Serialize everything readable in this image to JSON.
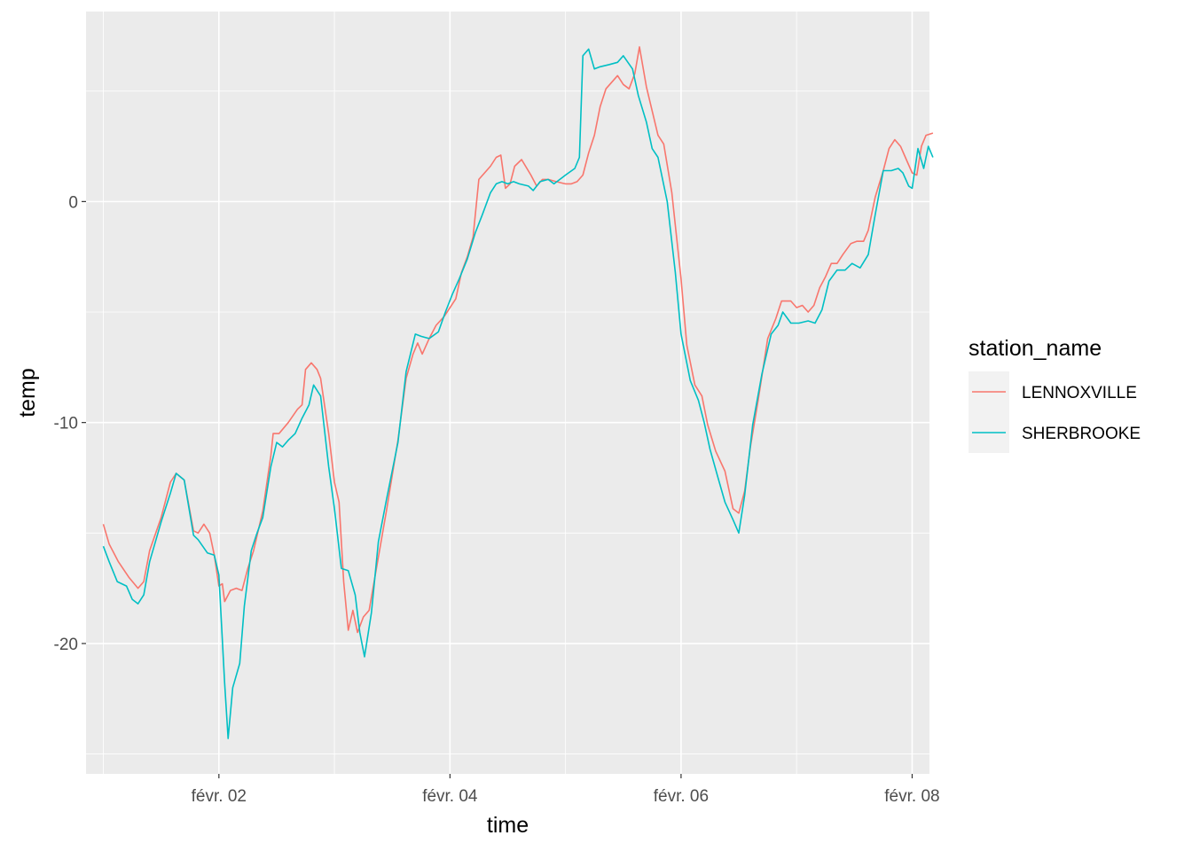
{
  "chart_data": {
    "type": "line",
    "xlabel": "time",
    "ylabel": "temp",
    "x_unit": "days (février)",
    "xlim": [
      0.85,
      8.15
    ],
    "ylim": [
      -25.9,
      8.6
    ],
    "x_ticks": [
      {
        "value": 2,
        "label": "févr. 02"
      },
      {
        "value": 4,
        "label": "févr. 04"
      },
      {
        "value": 6,
        "label": "févr. 06"
      },
      {
        "value": 8,
        "label": "févr. 08"
      }
    ],
    "x_minor": [
      1,
      3,
      5,
      7
    ],
    "y_ticks": [
      {
        "value": 0,
        "label": "0"
      },
      {
        "value": -10,
        "label": "-10"
      },
      {
        "value": -20,
        "label": "-20"
      }
    ],
    "y_minor": [
      5,
      -5,
      -15,
      -25
    ],
    "grid": true,
    "legend": {
      "title": "station_name",
      "position": "right"
    },
    "series": [
      {
        "name": "LENNOXVILLE",
        "color": "#F8766D",
        "points": [
          [
            1.0,
            -14.6
          ],
          [
            1.05,
            -15.5
          ],
          [
            1.13,
            -16.3
          ],
          [
            1.22,
            -17.0
          ],
          [
            1.3,
            -17.5
          ],
          [
            1.35,
            -17.2
          ],
          [
            1.4,
            -15.8
          ],
          [
            1.5,
            -14.3
          ],
          [
            1.58,
            -12.7
          ],
          [
            1.63,
            -12.3
          ],
          [
            1.7,
            -12.6
          ],
          [
            1.78,
            -14.9
          ],
          [
            1.82,
            -15.0
          ],
          [
            1.87,
            -14.6
          ],
          [
            1.92,
            -15.0
          ],
          [
            1.96,
            -16.0
          ],
          [
            2.0,
            -17.4
          ],
          [
            2.03,
            -17.3
          ],
          [
            2.05,
            -18.1
          ],
          [
            2.1,
            -17.6
          ],
          [
            2.15,
            -17.5
          ],
          [
            2.2,
            -17.6
          ],
          [
            2.25,
            -16.6
          ],
          [
            2.3,
            -15.8
          ],
          [
            2.38,
            -14.0
          ],
          [
            2.45,
            -11.5
          ],
          [
            2.47,
            -10.5
          ],
          [
            2.52,
            -10.5
          ],
          [
            2.6,
            -10.0
          ],
          [
            2.68,
            -9.4
          ],
          [
            2.72,
            -9.2
          ],
          [
            2.75,
            -7.6
          ],
          [
            2.8,
            -7.3
          ],
          [
            2.85,
            -7.6
          ],
          [
            2.88,
            -8.0
          ],
          [
            2.95,
            -10.5
          ],
          [
            3.0,
            -12.7
          ],
          [
            3.04,
            -13.6
          ],
          [
            3.08,
            -17.2
          ],
          [
            3.12,
            -19.4
          ],
          [
            3.16,
            -18.5
          ],
          [
            3.2,
            -19.5
          ],
          [
            3.25,
            -18.8
          ],
          [
            3.3,
            -18.5
          ],
          [
            3.35,
            -17.0
          ],
          [
            3.45,
            -14.0
          ],
          [
            3.55,
            -10.8
          ],
          [
            3.62,
            -8.0
          ],
          [
            3.68,
            -6.9
          ],
          [
            3.72,
            -6.4
          ],
          [
            3.76,
            -6.9
          ],
          [
            3.82,
            -6.2
          ],
          [
            3.88,
            -5.6
          ],
          [
            3.95,
            -5.2
          ],
          [
            4.0,
            -4.8
          ],
          [
            4.05,
            -4.4
          ],
          [
            4.1,
            -3.2
          ],
          [
            4.15,
            -2.5
          ],
          [
            4.2,
            -1.6
          ],
          [
            4.25,
            1.0
          ],
          [
            4.3,
            1.3
          ],
          [
            4.35,
            1.6
          ],
          [
            4.4,
            2.0
          ],
          [
            4.44,
            2.1
          ],
          [
            4.48,
            0.6
          ],
          [
            4.52,
            0.8
          ],
          [
            4.56,
            1.6
          ],
          [
            4.62,
            1.9
          ],
          [
            4.7,
            1.2
          ],
          [
            4.75,
            0.7
          ],
          [
            4.8,
            1.0
          ],
          [
            4.85,
            1.0
          ],
          [
            4.92,
            0.9
          ],
          [
            5.0,
            0.8
          ],
          [
            5.05,
            0.8
          ],
          [
            5.1,
            0.9
          ],
          [
            5.15,
            1.2
          ],
          [
            5.2,
            2.2
          ],
          [
            5.25,
            3.0
          ],
          [
            5.3,
            4.3
          ],
          [
            5.35,
            5.1
          ],
          [
            5.45,
            5.7
          ],
          [
            5.5,
            5.3
          ],
          [
            5.55,
            5.1
          ],
          [
            5.6,
            5.8
          ],
          [
            5.64,
            7.0
          ],
          [
            5.7,
            5.2
          ],
          [
            5.8,
            3.0
          ],
          [
            5.85,
            2.6
          ],
          [
            5.92,
            0.4
          ],
          [
            6.0,
            -3.5
          ],
          [
            6.05,
            -6.5
          ],
          [
            6.12,
            -8.3
          ],
          [
            6.18,
            -8.8
          ],
          [
            6.23,
            -10.1
          ],
          [
            6.3,
            -11.3
          ],
          [
            6.38,
            -12.2
          ],
          [
            6.45,
            -13.9
          ],
          [
            6.5,
            -14.1
          ],
          [
            6.55,
            -13.1
          ],
          [
            6.6,
            -11.1
          ],
          [
            6.67,
            -8.9
          ],
          [
            6.75,
            -6.2
          ],
          [
            6.82,
            -5.3
          ],
          [
            6.87,
            -4.5
          ],
          [
            6.95,
            -4.5
          ],
          [
            7.0,
            -4.8
          ],
          [
            7.05,
            -4.7
          ],
          [
            7.1,
            -5.0
          ],
          [
            7.15,
            -4.7
          ],
          [
            7.2,
            -3.9
          ],
          [
            7.25,
            -3.4
          ],
          [
            7.3,
            -2.8
          ],
          [
            7.35,
            -2.8
          ],
          [
            7.4,
            -2.4
          ],
          [
            7.47,
            -1.9
          ],
          [
            7.52,
            -1.8
          ],
          [
            7.58,
            -1.8
          ],
          [
            7.62,
            -1.3
          ],
          [
            7.68,
            0.2
          ],
          [
            7.75,
            1.4
          ],
          [
            7.8,
            2.4
          ],
          [
            7.85,
            2.8
          ],
          [
            7.9,
            2.5
          ],
          [
            7.95,
            1.9
          ],
          [
            8.0,
            1.3
          ],
          [
            8.04,
            1.2
          ],
          [
            8.08,
            2.5
          ],
          [
            8.12,
            3.0
          ],
          [
            8.18,
            3.1
          ]
        ]
      },
      {
        "name": "SHERBROOKE",
        "color": "#00BFC4",
        "points": [
          [
            1.0,
            -15.6
          ],
          [
            1.05,
            -16.3
          ],
          [
            1.12,
            -17.2
          ],
          [
            1.2,
            -17.4
          ],
          [
            1.25,
            -18.0
          ],
          [
            1.3,
            -18.2
          ],
          [
            1.35,
            -17.8
          ],
          [
            1.4,
            -16.3
          ],
          [
            1.5,
            -14.5
          ],
          [
            1.58,
            -13.2
          ],
          [
            1.63,
            -12.3
          ],
          [
            1.7,
            -12.6
          ],
          [
            1.78,
            -15.1
          ],
          [
            1.82,
            -15.3
          ],
          [
            1.9,
            -15.9
          ],
          [
            1.96,
            -16.0
          ],
          [
            2.0,
            -16.9
          ],
          [
            2.05,
            -21.8
          ],
          [
            2.08,
            -24.3
          ],
          [
            2.12,
            -22.0
          ],
          [
            2.18,
            -20.9
          ],
          [
            2.22,
            -18.3
          ],
          [
            2.28,
            -15.8
          ],
          [
            2.33,
            -15.0
          ],
          [
            2.38,
            -14.3
          ],
          [
            2.45,
            -12.0
          ],
          [
            2.5,
            -10.9
          ],
          [
            2.55,
            -11.1
          ],
          [
            2.6,
            -10.8
          ],
          [
            2.66,
            -10.5
          ],
          [
            2.72,
            -9.8
          ],
          [
            2.78,
            -9.2
          ],
          [
            2.82,
            -8.3
          ],
          [
            2.88,
            -8.8
          ],
          [
            2.95,
            -12.0
          ],
          [
            3.0,
            -13.9
          ],
          [
            3.06,
            -16.6
          ],
          [
            3.12,
            -16.7
          ],
          [
            3.18,
            -17.8
          ],
          [
            3.22,
            -19.5
          ],
          [
            3.26,
            -20.6
          ],
          [
            3.32,
            -18.6
          ],
          [
            3.38,
            -15.4
          ],
          [
            3.45,
            -13.5
          ],
          [
            3.55,
            -10.9
          ],
          [
            3.62,
            -7.7
          ],
          [
            3.7,
            -6.0
          ],
          [
            3.75,
            -6.1
          ],
          [
            3.82,
            -6.2
          ],
          [
            3.9,
            -5.9
          ],
          [
            3.96,
            -5.0
          ],
          [
            4.02,
            -4.2
          ],
          [
            4.08,
            -3.5
          ],
          [
            4.15,
            -2.6
          ],
          [
            4.22,
            -1.4
          ],
          [
            4.28,
            -0.6
          ],
          [
            4.35,
            0.4
          ],
          [
            4.4,
            0.8
          ],
          [
            4.45,
            0.9
          ],
          [
            4.5,
            0.8
          ],
          [
            4.55,
            0.9
          ],
          [
            4.6,
            0.8
          ],
          [
            4.68,
            0.7
          ],
          [
            4.72,
            0.5
          ],
          [
            4.78,
            0.9
          ],
          [
            4.85,
            1.0
          ],
          [
            4.9,
            0.8
          ],
          [
            5.0,
            1.2
          ],
          [
            5.08,
            1.5
          ],
          [
            5.12,
            2.0
          ],
          [
            5.15,
            6.6
          ],
          [
            5.2,
            6.9
          ],
          [
            5.25,
            6.0
          ],
          [
            5.3,
            6.1
          ],
          [
            5.38,
            6.2
          ],
          [
            5.45,
            6.3
          ],
          [
            5.5,
            6.6
          ],
          [
            5.58,
            6.0
          ],
          [
            5.63,
            4.8
          ],
          [
            5.7,
            3.6
          ],
          [
            5.75,
            2.4
          ],
          [
            5.8,
            2.0
          ],
          [
            5.88,
            0.0
          ],
          [
            5.95,
            -3.2
          ],
          [
            6.0,
            -6.0
          ],
          [
            6.08,
            -8.1
          ],
          [
            6.15,
            -9.0
          ],
          [
            6.2,
            -10.0
          ],
          [
            6.25,
            -11.2
          ],
          [
            6.32,
            -12.5
          ],
          [
            6.38,
            -13.6
          ],
          [
            6.45,
            -14.4
          ],
          [
            6.5,
            -15.0
          ],
          [
            6.55,
            -13.3
          ],
          [
            6.62,
            -10.1
          ],
          [
            6.7,
            -7.8
          ],
          [
            6.78,
            -6.0
          ],
          [
            6.84,
            -5.6
          ],
          [
            6.88,
            -5.0
          ],
          [
            6.95,
            -5.5
          ],
          [
            7.02,
            -5.5
          ],
          [
            7.1,
            -5.4
          ],
          [
            7.16,
            -5.5
          ],
          [
            7.22,
            -4.9
          ],
          [
            7.28,
            -3.6
          ],
          [
            7.35,
            -3.1
          ],
          [
            7.42,
            -3.1
          ],
          [
            7.48,
            -2.8
          ],
          [
            7.55,
            -3.0
          ],
          [
            7.62,
            -2.4
          ],
          [
            7.68,
            -0.6
          ],
          [
            7.75,
            1.4
          ],
          [
            7.82,
            1.4
          ],
          [
            7.88,
            1.5
          ],
          [
            7.92,
            1.3
          ],
          [
            7.97,
            0.7
          ],
          [
            8.0,
            0.6
          ],
          [
            8.05,
            2.4
          ],
          [
            8.1,
            1.5
          ],
          [
            8.14,
            2.5
          ],
          [
            8.18,
            2.0
          ]
        ]
      }
    ]
  }
}
